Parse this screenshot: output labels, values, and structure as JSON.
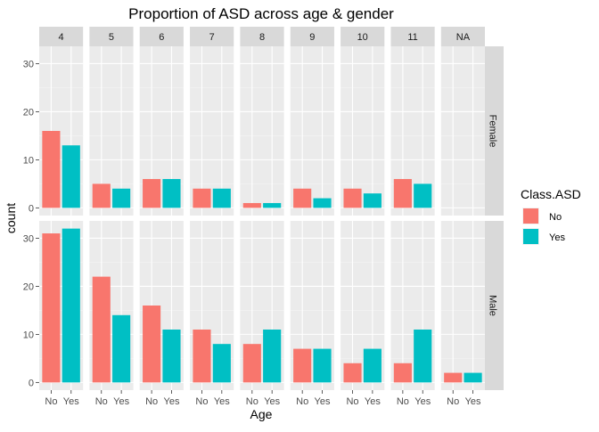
{
  "chart_data": {
    "type": "bar",
    "title": "Proportion of ASD across age & gender",
    "xlabel": "Age",
    "ylabel": "count",
    "facet_columns": [
      "4",
      "5",
      "6",
      "7",
      "8",
      "9",
      "10",
      "11",
      "NA"
    ],
    "facet_rows": [
      "Female",
      "Male"
    ],
    "categories": [
      "No",
      "Yes"
    ],
    "ylim": [
      0,
      32
    ],
    "y_ticks": [
      0,
      10,
      20,
      30
    ],
    "grid": true,
    "legend": {
      "title": "Class.ASD",
      "position": "right",
      "entries": [
        {
          "label": "No",
          "color": "#F8766D"
        },
        {
          "label": "Yes",
          "color": "#00BFC4"
        }
      ]
    },
    "series": [
      {
        "name": "No",
        "color": "#F8766D"
      },
      {
        "name": "Yes",
        "color": "#00BFC4"
      }
    ],
    "panels": {
      "Female": {
        "4": [
          16,
          13
        ],
        "5": [
          5,
          4
        ],
        "6": [
          6,
          6
        ],
        "7": [
          4,
          4
        ],
        "8": [
          1,
          1
        ],
        "9": [
          4,
          2
        ],
        "10": [
          4,
          3
        ],
        "11": [
          6,
          5
        ],
        "NA": [
          0,
          0
        ]
      },
      "Male": {
        "4": [
          31,
          32
        ],
        "5": [
          22,
          14
        ],
        "6": [
          16,
          11
        ],
        "7": [
          11,
          8
        ],
        "8": [
          8,
          11
        ],
        "9": [
          7,
          7
        ],
        "10": [
          4,
          7
        ],
        "11": [
          4,
          11
        ],
        "NA": [
          2,
          2
        ]
      }
    },
    "colors": {
      "panel_background": "#EBEBEB",
      "grid_major": "#FFFFFF",
      "strip_background": "#D9D9D9",
      "text": "#000000",
      "tick_text": "#4D4D4D"
    }
  }
}
